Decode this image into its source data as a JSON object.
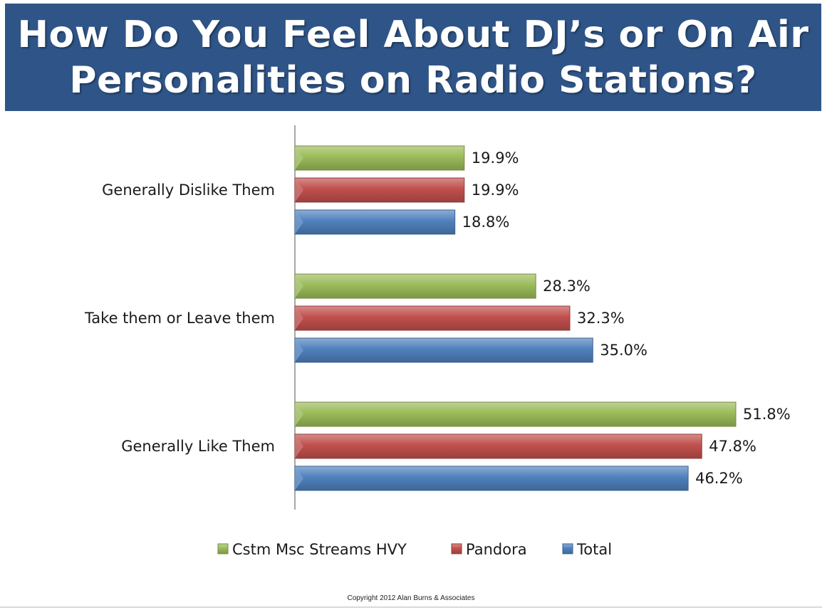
{
  "title": {
    "line1": "How Do You Feel About DJ’s or On Air",
    "line2": "Personalities on Radio Stations?"
  },
  "chart_data": {
    "type": "bar",
    "orientation": "horizontal",
    "categories": [
      "Generally Dislike Them",
      "Take them or Leave them",
      "Generally Like Them"
    ],
    "series": [
      {
        "name": "Cstm Msc Streams HVY",
        "values": [
          19.9,
          28.3,
          51.8
        ],
        "labels": [
          "19.9%",
          "28.3%",
          "51.8%"
        ],
        "color": "#9bbb59"
      },
      {
        "name": "Pandora",
        "values": [
          19.9,
          32.3,
          47.8
        ],
        "labels": [
          "19.9%",
          "32.3%",
          "47.8%"
        ],
        "color": "#c0504d"
      },
      {
        "name": "Total",
        "values": [
          18.8,
          35.0,
          46.2
        ],
        "labels": [
          "18.8%",
          "35.0%",
          "46.2%"
        ],
        "color": "#4f81bd"
      }
    ],
    "xlim": [
      0,
      55
    ],
    "grid": false,
    "legend_position": "bottom",
    "data_labels": true
  },
  "copyright": "Copyright 2012 Alan Burns & Associates"
}
